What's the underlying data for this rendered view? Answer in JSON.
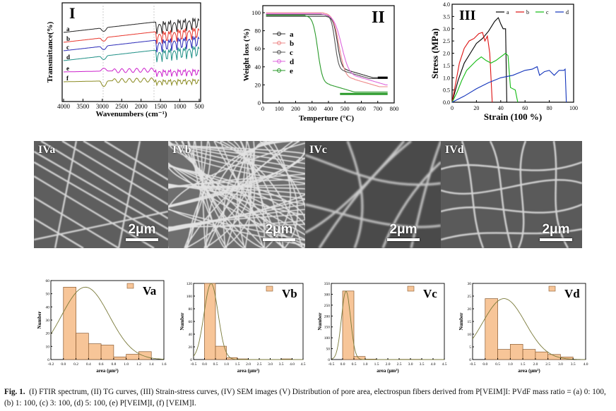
{
  "ftir": {
    "panel_label": "I",
    "ylabel": "Transmittance(%)",
    "xlabel": "Wavenumbers (cm⁻¹)",
    "xticks": [
      "4000",
      "3500",
      "3000",
      "2500",
      "2000",
      "1500",
      "1000",
      "500"
    ],
    "curves": [
      "a",
      "b",
      "c",
      "d",
      "e",
      "f"
    ],
    "colors": {
      "a": "#222222",
      "b": "#e8352b",
      "c": "#2a2ab8",
      "d": "#1d8f85",
      "e": "#cc22cc",
      "f": "#8b8b22"
    }
  },
  "tg": {
    "panel_label": "II",
    "ylabel": "Weight loss (%)",
    "xlabel": "Temperture (°C)",
    "xticks": [
      "0",
      "100",
      "200",
      "300",
      "400",
      "500",
      "600",
      "700",
      "800"
    ],
    "yticks": [
      "0",
      "20",
      "40",
      "60",
      "80",
      "100"
    ],
    "legend": [
      "a",
      "b",
      "c",
      "d",
      "e"
    ]
  },
  "stress": {
    "panel_label": "III",
    "ylabel": "Stress (MPa)",
    "xlabel": "Strain (100 %)",
    "xticks": [
      "0",
      "20",
      "40",
      "60",
      "80",
      "100"
    ],
    "yticks": [
      "0.0",
      "0.5",
      "1.0",
      "1.5",
      "2.0",
      "2.5",
      "3.0",
      "3.5",
      "4.0"
    ],
    "legend": [
      "a",
      "b",
      "c",
      "d"
    ]
  },
  "sem": [
    {
      "label": "IVa",
      "scale": "2μm"
    },
    {
      "label": "IVb",
      "scale": "2μm"
    },
    {
      "label": "IVc",
      "scale": "2μm"
    },
    {
      "label": "IVd",
      "scale": "2μm"
    }
  ],
  "chart_data": [
    {
      "type": "bar",
      "title": "Va",
      "xlabel": "area (μm²)",
      "ylabel": "Number",
      "xlim": [
        -0.2,
        1.6
      ],
      "ylim": [
        0,
        60
      ],
      "xticks": [
        "-0.2",
        "0.0",
        "0.2",
        "0.4",
        "0.6",
        "0.8",
        "1.0",
        "1.2",
        "1.4",
        "1.6"
      ],
      "yticks": [
        "0",
        "10",
        "20",
        "30",
        "40",
        "50",
        "60"
      ],
      "bin_width": 0.2,
      "bins": [
        0.0,
        0.2,
        0.4,
        0.6,
        0.8,
        1.0,
        1.2
      ],
      "values": [
        55,
        20,
        12,
        11,
        2,
        4,
        6
      ],
      "fit_peak": [
        0.35,
        55
      ],
      "fit_sigma": 0.38
    },
    {
      "type": "bar",
      "title": "Vb",
      "xlabel": "area (μm²)",
      "ylabel": "Number",
      "xlim": [
        -0.5,
        4.5
      ],
      "ylim": [
        0,
        120
      ],
      "xticks": [
        "-0.5",
        "0.0",
        "0.5",
        "1.0",
        "1.5",
        "2.0",
        "2.5",
        "3.0",
        "3.5",
        "4.0",
        "4.5"
      ],
      "yticks": [
        "0",
        "20",
        "40",
        "60",
        "80",
        "100",
        "120"
      ],
      "bin_width": 0.5,
      "bins": [
        0.0,
        0.5,
        1.0,
        1.5,
        2.0,
        2.5,
        3.0,
        3.5
      ],
      "values": [
        120,
        21,
        3,
        1,
        0,
        0,
        0,
        1
      ],
      "fit_peak": [
        0.3,
        120
      ],
      "fit_sigma": 0.32
    },
    {
      "type": "bar",
      "title": "Vc",
      "xlabel": "area (μm²)",
      "ylabel": "Number",
      "xlim": [
        -0.5,
        4.5
      ],
      "ylim": [
        0,
        350
      ],
      "xticks": [
        "-0.5",
        "0.0",
        "0.5",
        "1.0",
        "1.5",
        "2.0",
        "2.5",
        "3.0",
        "3.5",
        "4.0",
        "4.5"
      ],
      "yticks": [
        "0",
        "50",
        "100",
        "150",
        "200",
        "250",
        "300",
        "350"
      ],
      "bin_width": 0.5,
      "bins": [
        0.0,
        0.5,
        1.0,
        1.5,
        2.0,
        2.5,
        3.0,
        3.5
      ],
      "values": [
        315,
        14,
        2,
        0,
        0,
        1,
        1,
        0
      ],
      "fit_peak": [
        0.15,
        315
      ],
      "fit_sigma": 0.2
    },
    {
      "type": "bar",
      "title": "Vd",
      "xlabel": "area (μm²)",
      "ylabel": "Number",
      "xlim": [
        -0.5,
        4.0
      ],
      "ylim": [
        0,
        30
      ],
      "xticks": [
        "-0.5",
        "0.0",
        "0.5",
        "1.0",
        "1.5",
        "2.0",
        "2.5",
        "3.0",
        "3.5",
        "4.0"
      ],
      "yticks": [
        "0",
        "5",
        "10",
        "15",
        "20",
        "25",
        "30"
      ],
      "bin_width": 0.5,
      "bins": [
        0.0,
        0.5,
        1.0,
        1.5,
        2.0,
        2.5,
        3.0
      ],
      "values": [
        24,
        4,
        6,
        4,
        3,
        2,
        1
      ],
      "fit_peak": [
        0.75,
        24
      ],
      "fit_sigma": 0.85
    }
  ],
  "caption": {
    "prefix": "Fig. 1.",
    "text": "(I) FTIR spectrum, (II) TG curves, (III) Strain-stress curves, (IV) SEM images (V) Distribution of pore area, electrospun fibers derived from P[VEIM]I: PVdF mass ratio = (a) 0: 100, (b) 1: 100, (c) 3: 100, (d) 5: 100, (e) P[VEIM]I, (f) [VEIM]I."
  }
}
